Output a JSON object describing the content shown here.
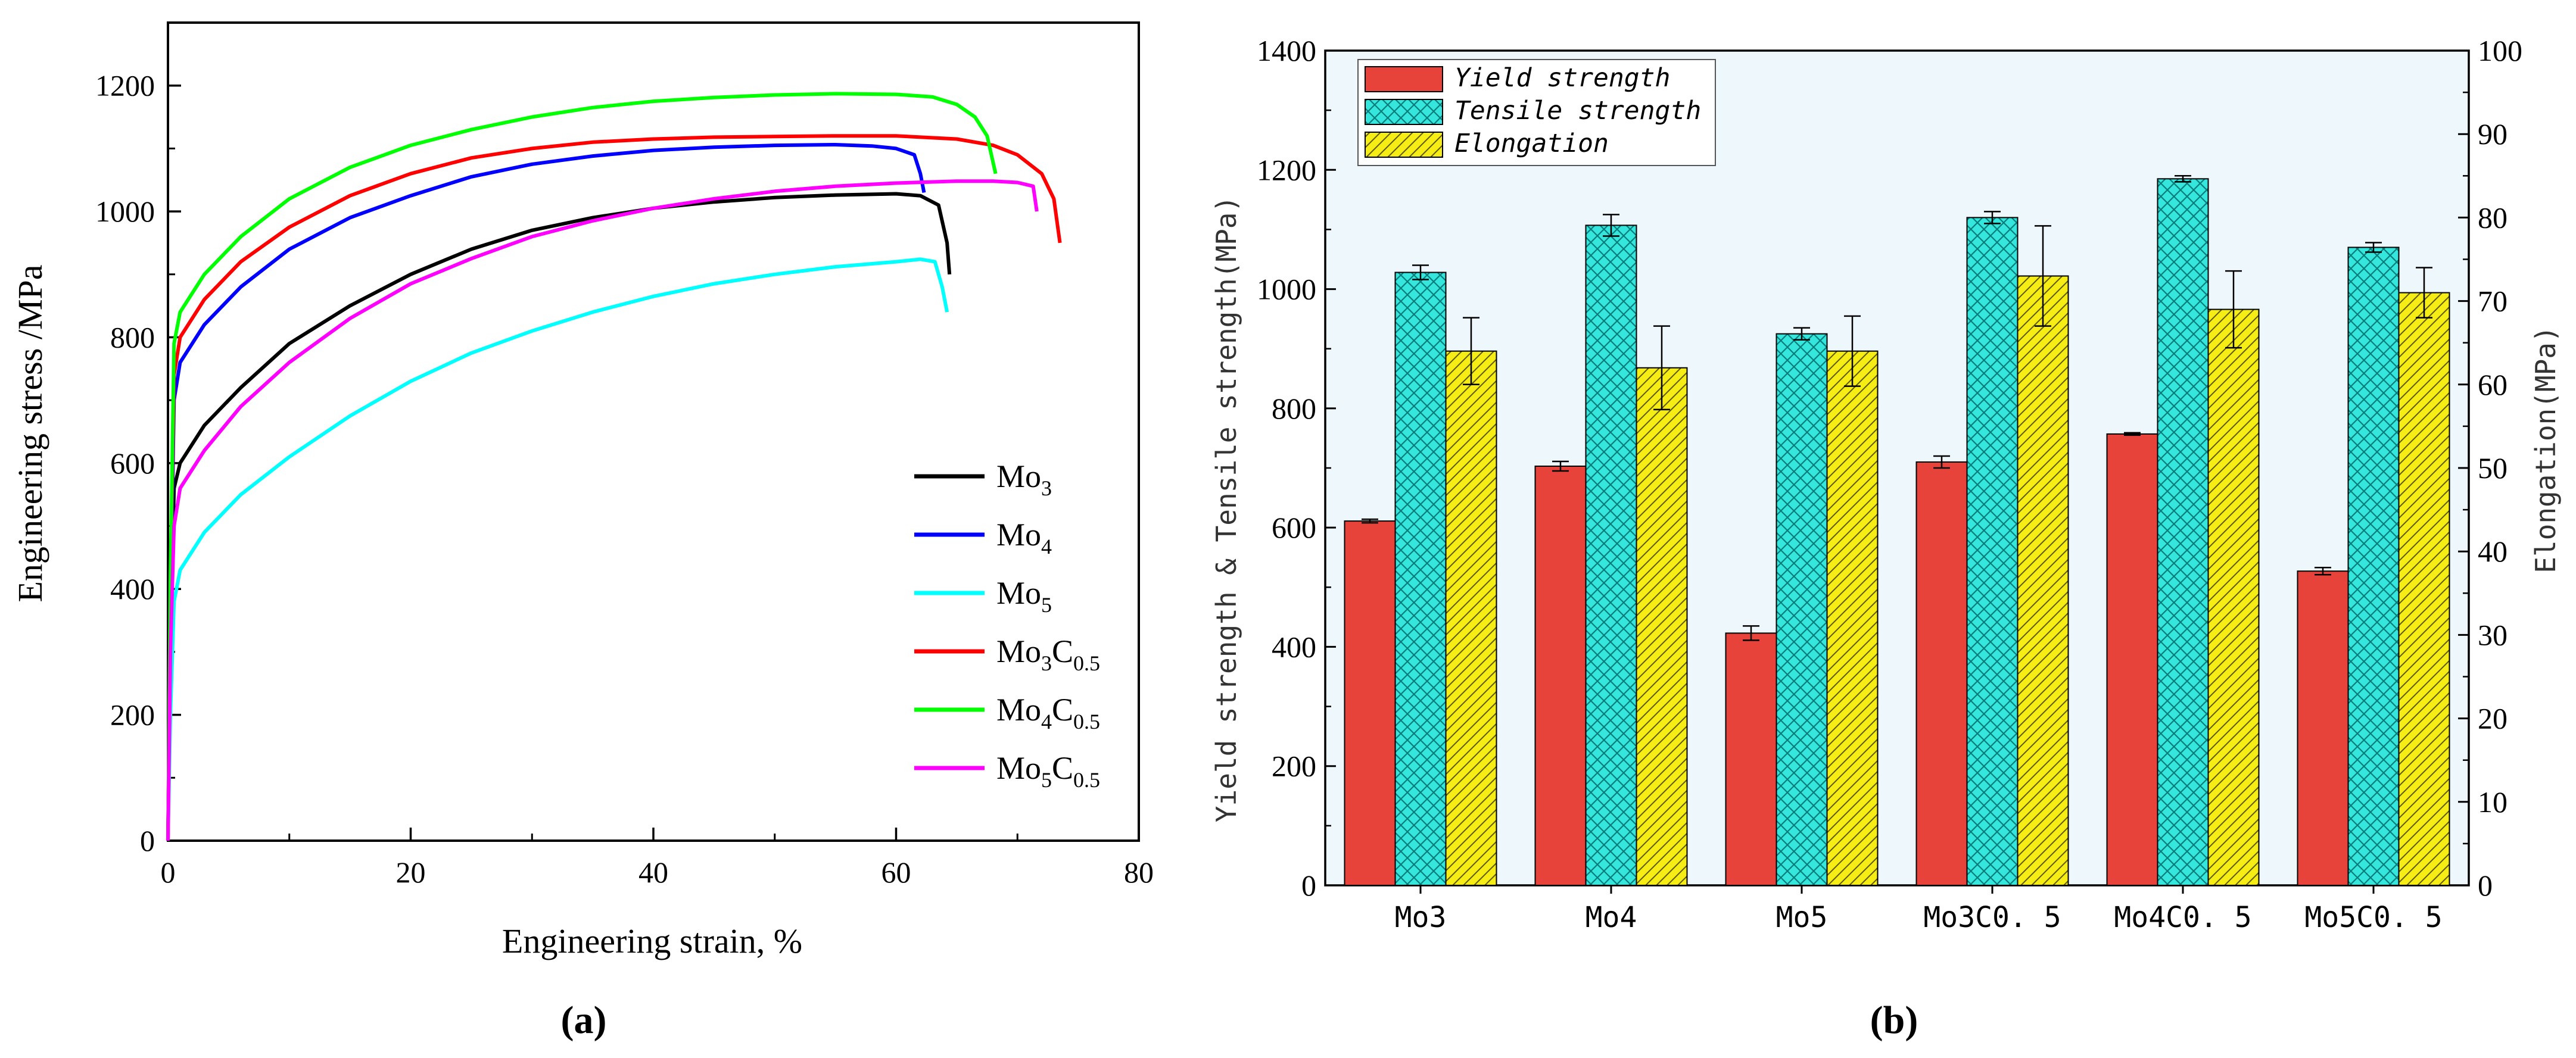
{
  "chart_data": [
    {
      "panel": "(a)",
      "type": "line",
      "xlabel": "Engineering strain, %",
      "ylabel": "Engineering stress /MPa",
      "xlim": [
        0,
        80
      ],
      "ylim": [
        0,
        1300
      ],
      "x_ticks": [
        0,
        20,
        40,
        60,
        80
      ],
      "y_ticks": [
        0,
        200,
        400,
        600,
        800,
        1000,
        1200
      ],
      "legend_position": "bottom-right",
      "series": [
        {
          "name": "Mo3",
          "base": "Mo",
          "sub": "3",
          "base2": "",
          "sub2": "",
          "color": "#000000",
          "points": [
            [
              0,
              0
            ],
            [
              0.2,
              300
            ],
            [
              0.5,
              560
            ],
            [
              1,
              600
            ],
            [
              3,
              660
            ],
            [
              6,
              720
            ],
            [
              10,
              790
            ],
            [
              15,
              850
            ],
            [
              20,
              900
            ],
            [
              25,
              940
            ],
            [
              30,
              970
            ],
            [
              35,
              990
            ],
            [
              40,
              1005
            ],
            [
              45,
              1015
            ],
            [
              50,
              1022
            ],
            [
              55,
              1026
            ],
            [
              60,
              1028
            ],
            [
              62,
              1025
            ],
            [
              63.5,
              1010
            ],
            [
              64.2,
              950
            ],
            [
              64.4,
              900
            ]
          ]
        },
        {
          "name": "Mo4",
          "base": "Mo",
          "sub": "4",
          "base2": "",
          "sub2": "",
          "color": "#0000ff",
          "points": [
            [
              0,
              0
            ],
            [
              0.2,
              350
            ],
            [
              0.5,
              700
            ],
            [
              1,
              760
            ],
            [
              3,
              820
            ],
            [
              6,
              880
            ],
            [
              10,
              940
            ],
            [
              15,
              990
            ],
            [
              20,
              1025
            ],
            [
              25,
              1055
            ],
            [
              30,
              1075
            ],
            [
              35,
              1088
            ],
            [
              40,
              1097
            ],
            [
              45,
              1102
            ],
            [
              50,
              1105
            ],
            [
              55,
              1106
            ],
            [
              58,
              1104
            ],
            [
              60,
              1100
            ],
            [
              61.5,
              1090
            ],
            [
              62,
              1060
            ],
            [
              62.3,
              1030
            ]
          ]
        },
        {
          "name": "Mo5",
          "base": "Mo",
          "sub": "5",
          "base2": "",
          "sub2": "",
          "color": "#00ffff",
          "points": [
            [
              0,
              0
            ],
            [
              0.2,
              200
            ],
            [
              0.5,
              380
            ],
            [
              1,
              430
            ],
            [
              3,
              490
            ],
            [
              6,
              550
            ],
            [
              10,
              610
            ],
            [
              15,
              675
            ],
            [
              20,
              730
            ],
            [
              25,
              775
            ],
            [
              30,
              810
            ],
            [
              35,
              840
            ],
            [
              40,
              865
            ],
            [
              45,
              885
            ],
            [
              50,
              900
            ],
            [
              55,
              912
            ],
            [
              60,
              920
            ],
            [
              62,
              924
            ],
            [
              63.2,
              920
            ],
            [
              63.8,
              880
            ],
            [
              64.2,
              840
            ]
          ]
        },
        {
          "name": "Mo3C0.5",
          "base": "Mo",
          "sub": "3",
          "base2": "C",
          "sub2": "0.5",
          "color": "#ff0000",
          "points": [
            [
              0,
              0
            ],
            [
              0.2,
              400
            ],
            [
              0.5,
              740
            ],
            [
              1,
              800
            ],
            [
              3,
              860
            ],
            [
              6,
              920
            ],
            [
              10,
              975
            ],
            [
              15,
              1025
            ],
            [
              20,
              1060
            ],
            [
              25,
              1085
            ],
            [
              30,
              1100
            ],
            [
              35,
              1110
            ],
            [
              40,
              1115
            ],
            [
              45,
              1118
            ],
            [
              50,
              1119
            ],
            [
              55,
              1120
            ],
            [
              60,
              1120
            ],
            [
              65,
              1115
            ],
            [
              68,
              1105
            ],
            [
              70,
              1090
            ],
            [
              72,
              1060
            ],
            [
              73,
              1020
            ],
            [
              73.5,
              950
            ]
          ]
        },
        {
          "name": "Mo4C0.5",
          "base": "Mo",
          "sub": "4",
          "base2": "C",
          "sub2": "0.5",
          "color": "#00ff00",
          "points": [
            [
              0,
              0
            ],
            [
              0.2,
              420
            ],
            [
              0.5,
              790
            ],
            [
              1,
              840
            ],
            [
              3,
              900
            ],
            [
              6,
              960
            ],
            [
              10,
              1020
            ],
            [
              15,
              1070
            ],
            [
              20,
              1105
            ],
            [
              25,
              1130
            ],
            [
              30,
              1150
            ],
            [
              35,
              1165
            ],
            [
              40,
              1175
            ],
            [
              45,
              1181
            ],
            [
              50,
              1185
            ],
            [
              55,
              1187
            ],
            [
              60,
              1186
            ],
            [
              63,
              1182
            ],
            [
              65,
              1170
            ],
            [
              66.5,
              1150
            ],
            [
              67.5,
              1120
            ],
            [
              68.2,
              1060
            ]
          ]
        },
        {
          "name": "Mo5C0.5",
          "base": "Mo",
          "sub": "5",
          "base2": "C",
          "sub2": "0.5",
          "color": "#ff00ff",
          "points": [
            [
              0,
              0
            ],
            [
              0.2,
              300
            ],
            [
              0.5,
              500
            ],
            [
              1,
              560
            ],
            [
              3,
              620
            ],
            [
              6,
              690
            ],
            [
              10,
              760
            ],
            [
              15,
              830
            ],
            [
              20,
              885
            ],
            [
              25,
              925
            ],
            [
              30,
              960
            ],
            [
              35,
              985
            ],
            [
              40,
              1005
            ],
            [
              45,
              1020
            ],
            [
              50,
              1032
            ],
            [
              55,
              1040
            ],
            [
              60,
              1045
            ],
            [
              65,
              1048
            ],
            [
              68,
              1048
            ],
            [
              70,
              1046
            ],
            [
              71.3,
              1040
            ],
            [
              71.6,
              1000
            ]
          ]
        }
      ]
    },
    {
      "panel": "(b)",
      "type": "bar",
      "categories": [
        "Mo3",
        "Mo4",
        "Mo5",
        "Mo3C0.5",
        "Mo4C0.5",
        "Mo5C0.5"
      ],
      "category_labels": [
        "Mo3",
        "Mo4",
        "Mo5",
        "Mo3C0. 5",
        "Mo4C0. 5",
        "Mo5C0. 5"
      ],
      "ylabel": "Yield strength & Tensile strength(MPa)",
      "y2label": "Elongation(MPa)",
      "ylim": [
        0,
        1400
      ],
      "y2lim": [
        0,
        100
      ],
      "y_ticks": [
        0,
        200,
        400,
        600,
        800,
        1000,
        1200,
        1400
      ],
      "y2_ticks": [
        0,
        10,
        20,
        30,
        40,
        50,
        60,
        70,
        80,
        90,
        100
      ],
      "legend_position": "top-left",
      "series": [
        {
          "name": "Yield strength",
          "axis": "left",
          "color": "#e8433a",
          "pattern": "none",
          "values": [
            611,
            703,
            423,
            710,
            757,
            527
          ],
          "errors": [
            3,
            8,
            12,
            10,
            2,
            6
          ]
        },
        {
          "name": "Tensile strength",
          "axis": "left",
          "color": "#35e6dd",
          "pattern": "crosshatch",
          "values": [
            1028,
            1107,
            925,
            1120,
            1185,
            1070
          ],
          "errors": [
            12,
            18,
            10,
            10,
            5,
            8
          ]
        },
        {
          "name": "Elongation",
          "axis": "right",
          "color": "#f6ed15",
          "pattern": "diagonal",
          "values": [
            64,
            62,
            64,
            73,
            69,
            71
          ],
          "errors": [
            4,
            5,
            4.2,
            6,
            4.6,
            3
          ]
        }
      ]
    }
  ],
  "captions": {
    "a": "(a)",
    "b": "(b)"
  }
}
